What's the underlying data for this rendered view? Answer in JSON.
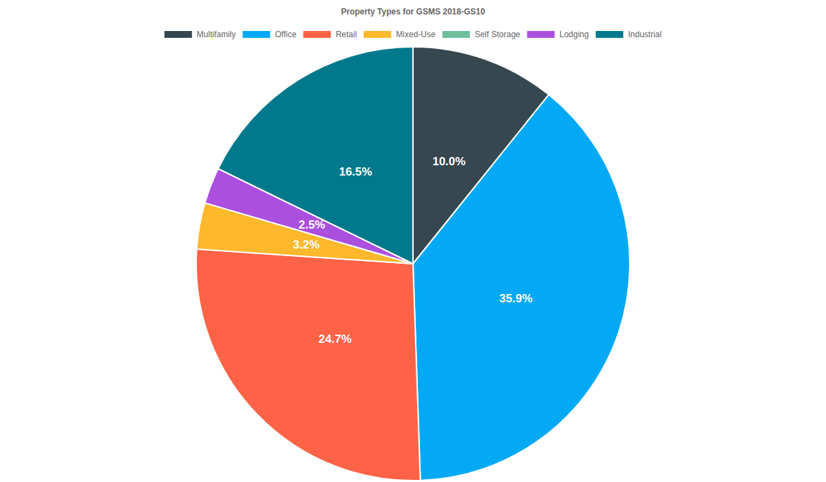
{
  "chart_data": {
    "type": "pie",
    "title": "Property Types for GSMS 2018-GS10",
    "categories": [
      "Multifamily",
      "Office",
      "Retail",
      "Mixed-Use",
      "Self Storage",
      "Lodging",
      "Industrial"
    ],
    "values": [
      10.0,
      35.9,
      24.7,
      3.2,
      0,
      2.5,
      16.5
    ],
    "value_labels": [
      "10.0%",
      "35.9%",
      "24.7%",
      "3.2%",
      null,
      "2.5%",
      "16.5%"
    ],
    "colors": [
      "#37474f",
      "#03a9f4",
      "#ff6347",
      "#fdb82c",
      "#6dbf9b",
      "#ab4fde",
      "#00798c"
    ],
    "data_labels": true,
    "legend": "top"
  }
}
